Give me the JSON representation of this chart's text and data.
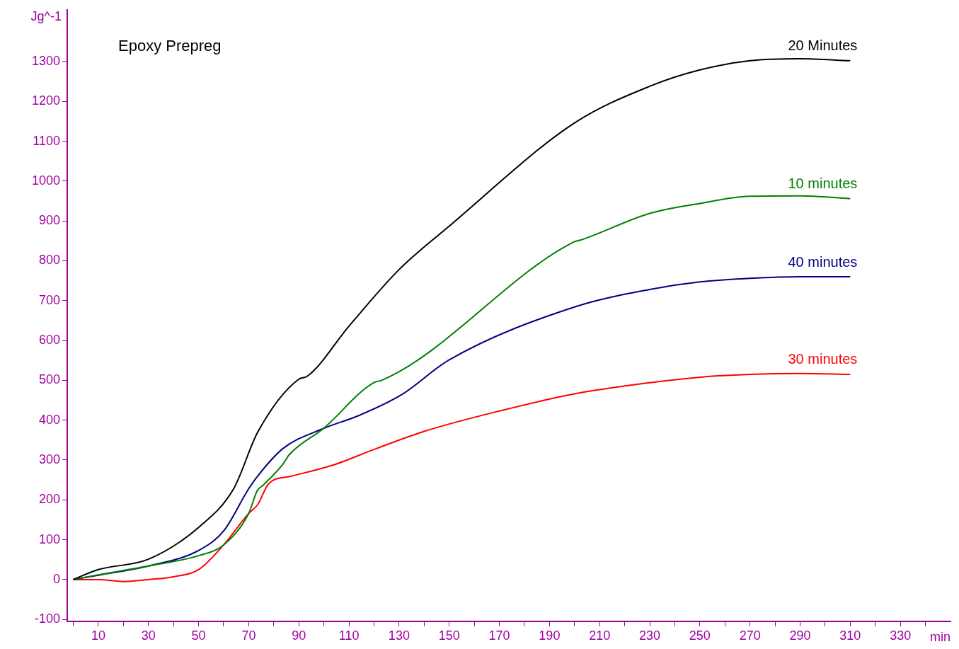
{
  "chart_data": {
    "type": "line",
    "title": "Epoxy Prepreg",
    "xlabel": "min",
    "ylabel": "Jg^-1",
    "xlim": [
      -2.4,
      350
    ],
    "xticks": [
      {
        "value": 0,
        "label": null
      },
      10,
      {
        "value": 20,
        "label": null
      },
      30,
      {
        "value": 40,
        "label": null
      },
      50,
      {
        "value": 60,
        "label": null
      },
      70,
      {
        "value": 80,
        "label": null
      },
      90,
      {
        "value": 100,
        "label": null
      },
      110,
      {
        "value": 120,
        "label": null
      },
      130,
      {
        "value": 140,
        "label": null
      },
      150,
      {
        "value": 160,
        "label": null
      },
      170,
      {
        "value": 180,
        "label": null
      },
      190,
      {
        "value": 200,
        "label": null
      },
      210,
      {
        "value": 220,
        "label": null
      },
      230,
      {
        "value": 240,
        "label": null
      },
      250,
      {
        "value": 260,
        "label": null
      },
      270,
      {
        "value": 280,
        "label": null
      },
      290,
      {
        "value": 300,
        "label": null
      },
      310,
      {
        "value": 320,
        "label": null
      },
      330,
      {
        "value": 340,
        "label": null
      }
    ],
    "ylim": [
      -105,
      1430
    ],
    "yticks": [
      -100,
      0,
      100,
      200,
      300,
      400,
      500,
      600,
      700,
      800,
      900,
      1000,
      1100,
      1200,
      1300
    ],
    "grid": false,
    "legend": false,
    "marker": "none",
    "line_style": "solid",
    "series": [
      {
        "name": "20 Minutes",
        "color": "#000000",
        "x": [
          0,
          10,
          30,
          50,
          64,
          73.6,
          90,
          93.3,
          110,
          130,
          150,
          200,
          230,
          250,
          270,
          290,
          310
        ],
        "values": [
          0,
          25,
          51,
          131,
          228,
          370,
          503,
          510,
          636,
          778,
          887,
          1146,
          1238,
          1279,
          1302,
          1307,
          1302
        ]
      },
      {
        "name": "10 minutes",
        "color": "#008000",
        "x": [
          0,
          10,
          30,
          50,
          60,
          70,
          73.4,
          75.8,
          83.7,
          86,
          99.8,
          120.5,
          122.7,
          200,
          202.4,
          230,
          250,
          270,
          290,
          310
        ],
        "values": [
          0,
          12,
          34,
          60,
          87,
          166,
          223,
          237,
          290,
          312,
          379,
          496,
          499,
          848,
          852,
          919,
          944,
          962,
          963,
          956
        ]
      },
      {
        "name": "40 minutes",
        "color": "#000080",
        "x": [
          0,
          10,
          30,
          50,
          60,
          70,
          73.6,
          83.7,
          99.8,
          113.7,
          131,
          149.9,
          200,
          230,
          250,
          270,
          290,
          310
        ],
        "values": [
          0,
          11,
          34,
          73,
          122,
          228,
          260,
          329,
          379,
          411,
          464,
          551,
          684,
          728,
          747,
          756,
          760,
          760
        ]
      },
      {
        "name": "30 minutes",
        "color": "#ff0000",
        "x": [
          0,
          10,
          20,
          30,
          40,
          50,
          60,
          70,
          73.6,
          78,
          86.6,
          103.5,
          121,
          140,
          170,
          200,
          230,
          250,
          270,
          290,
          310
        ],
        "values": [
          0,
          0,
          -5,
          0,
          7,
          25,
          87,
          166,
          188,
          241,
          259,
          287,
          329,
          372,
          423,
          466,
          494,
          508,
          515,
          517,
          515
        ]
      }
    ]
  }
}
